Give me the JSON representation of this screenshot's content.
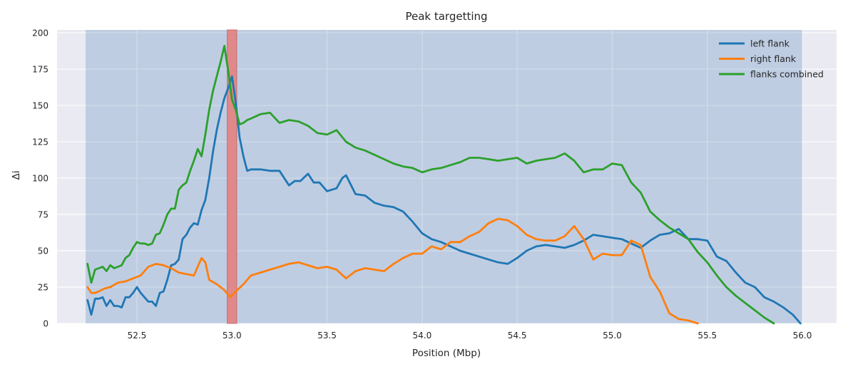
{
  "chart_data": {
    "type": "line",
    "title": "Peak targetting",
    "xlabel": "Position (Mbp)",
    "ylabel": "Δi",
    "xlim": [
      52.08,
      56.18
    ],
    "ylim": [
      0,
      202
    ],
    "xticks": [
      52.5,
      53.0,
      53.5,
      54.0,
      54.5,
      55.0,
      55.5,
      56.0
    ],
    "xtick_labels": [
      "52.5",
      "53.0",
      "53.5",
      "54.0",
      "54.5",
      "55.0",
      "55.5",
      "56.0"
    ],
    "yticks": [
      0,
      25,
      50,
      75,
      100,
      125,
      150,
      175,
      200
    ],
    "ytick_labels": [
      "0",
      "25",
      "50",
      "75",
      "100",
      "125",
      "150",
      "175",
      "200"
    ],
    "grid": true,
    "legend_position": "top-right",
    "background_color": "#eaeaf2",
    "shaded_region": {
      "x": [
        52.23,
        56.0
      ],
      "color": "#4c82b8",
      "opacity": 0.27
    },
    "highlight_region": {
      "x": [
        52.975,
        53.025
      ],
      "color": "#e0898a"
    },
    "series": [
      {
        "name": "left flank",
        "color": "#1f77b4",
        "x": [
          52.24,
          52.26,
          52.28,
          52.3,
          52.32,
          52.34,
          52.36,
          52.38,
          52.4,
          52.42,
          52.44,
          52.46,
          52.48,
          52.5,
          52.52,
          52.54,
          52.56,
          52.58,
          52.6,
          52.62,
          52.64,
          52.66,
          52.68,
          52.7,
          52.72,
          52.74,
          52.76,
          52.78,
          52.8,
          52.82,
          52.84,
          52.86,
          52.88,
          52.9,
          52.92,
          52.94,
          52.96,
          52.98,
          53.0,
          53.02,
          53.04,
          53.06,
          53.08,
          53.1,
          53.15,
          53.2,
          53.25,
          53.3,
          53.33,
          53.36,
          53.4,
          53.43,
          53.46,
          53.5,
          53.55,
          53.58,
          53.6,
          53.65,
          53.7,
          53.75,
          53.8,
          53.85,
          53.9,
          53.95,
          54.0,
          54.05,
          54.1,
          54.15,
          54.2,
          54.25,
          54.3,
          54.35,
          54.4,
          54.45,
          54.5,
          54.55,
          54.6,
          54.65,
          54.7,
          54.75,
          54.8,
          54.85,
          54.9,
          54.95,
          55.0,
          55.05,
          55.1,
          55.15,
          55.2,
          55.25,
          55.3,
          55.35,
          55.4,
          55.45,
          55.5,
          55.55,
          55.6,
          55.65,
          55.7,
          55.75,
          55.8,
          55.85,
          55.9,
          55.95,
          55.99
        ],
        "y": [
          16,
          6,
          17,
          17,
          18,
          12,
          16,
          12,
          12,
          11,
          18,
          18,
          21,
          25,
          21,
          18,
          15,
          15,
          12,
          21,
          22,
          30,
          40,
          41,
          44,
          58,
          61,
          66,
          69,
          68,
          78,
          85,
          100,
          118,
          133,
          145,
          155,
          162,
          170,
          152,
          128,
          115,
          105,
          106,
          106,
          105,
          105,
          95,
          98,
          98,
          103,
          97,
          97,
          91,
          93,
          100,
          102,
          89,
          88,
          83,
          81,
          80,
          77,
          70,
          62,
          58,
          56,
          53,
          50,
          48,
          46,
          44,
          42,
          41,
          45,
          50,
          53,
          54,
          53,
          52,
          54,
          57,
          61,
          60,
          59,
          58,
          55,
          52,
          57,
          61,
          62,
          65,
          58,
          58,
          57,
          46,
          43,
          35,
          28,
          25,
          18,
          15,
          11,
          6,
          0
        ]
      },
      {
        "name": "right flank",
        "color": "#ff7f0e",
        "x": [
          52.24,
          52.26,
          52.28,
          52.3,
          52.33,
          52.36,
          52.4,
          52.44,
          52.48,
          52.52,
          52.56,
          52.6,
          52.64,
          52.68,
          52.72,
          52.76,
          52.8,
          52.84,
          52.86,
          52.88,
          52.92,
          52.96,
          52.99,
          53.02,
          53.06,
          53.1,
          53.15,
          53.2,
          53.25,
          53.3,
          53.35,
          53.4,
          53.45,
          53.5,
          53.55,
          53.6,
          53.65,
          53.7,
          53.75,
          53.8,
          53.85,
          53.9,
          53.95,
          54.0,
          54.05,
          54.1,
          54.15,
          54.2,
          54.25,
          54.3,
          54.35,
          54.4,
          54.45,
          54.5,
          54.55,
          54.6,
          54.65,
          54.7,
          54.75,
          54.8,
          54.85,
          54.9,
          54.95,
          55.0,
          55.05,
          55.1,
          55.15,
          55.2,
          55.25,
          55.3,
          55.35,
          55.4,
          55.45
        ],
        "y": [
          25,
          21,
          21,
          22,
          24,
          25,
          28,
          29,
          31,
          33,
          39,
          41,
          40,
          38,
          35,
          34,
          33,
          45,
          42,
          30,
          27,
          23,
          18,
          22,
          27,
          33,
          35,
          37,
          39,
          41,
          42,
          40,
          38,
          39,
          37,
          31,
          36,
          38,
          37,
          36,
          41,
          45,
          48,
          48,
          53,
          51,
          56,
          56,
          60,
          63,
          69,
          72,
          71,
          67,
          61,
          58,
          57,
          57,
          60,
          67,
          58,
          44,
          48,
          47,
          47,
          57,
          54,
          32,
          22,
          7,
          3,
          2,
          0
        ]
      },
      {
        "name": "flanks combined",
        "color": "#2ca02c",
        "x": [
          52.24,
          52.26,
          52.28,
          52.3,
          52.32,
          52.34,
          52.36,
          52.38,
          52.4,
          52.42,
          52.44,
          52.46,
          52.48,
          52.5,
          52.52,
          52.54,
          52.56,
          52.58,
          52.6,
          52.62,
          52.64,
          52.66,
          52.68,
          52.7,
          52.72,
          52.74,
          52.76,
          52.78,
          52.8,
          52.82,
          52.84,
          52.86,
          52.88,
          52.9,
          52.92,
          52.94,
          52.96,
          52.98,
          53.0,
          53.02,
          53.04,
          53.06,
          53.08,
          53.1,
          53.15,
          53.2,
          53.25,
          53.3,
          53.35,
          53.4,
          53.45,
          53.5,
          53.55,
          53.6,
          53.65,
          53.7,
          53.75,
          53.8,
          53.85,
          53.9,
          53.95,
          54.0,
          54.05,
          54.1,
          54.15,
          54.2,
          54.25,
          54.3,
          54.35,
          54.4,
          54.45,
          54.5,
          54.55,
          54.6,
          54.65,
          54.7,
          54.75,
          54.8,
          54.85,
          54.9,
          54.95,
          55.0,
          55.05,
          55.1,
          55.15,
          55.2,
          55.25,
          55.3,
          55.35,
          55.4,
          55.45,
          55.5,
          55.55,
          55.6,
          55.65,
          55.7,
          55.75,
          55.8,
          55.85
        ],
        "y": [
          41,
          28,
          37,
          38,
          39,
          36,
          40,
          38,
          39,
          40,
          45,
          47,
          52,
          56,
          55,
          55,
          54,
          55,
          61,
          62,
          68,
          75,
          79,
          79,
          92,
          95,
          97,
          105,
          112,
          120,
          115,
          130,
          147,
          160,
          170,
          180,
          191,
          174,
          154,
          147,
          137,
          138,
          140,
          141,
          144,
          145,
          138,
          140,
          139,
          136,
          131,
          130,
          133,
          125,
          121,
          119,
          116,
          113,
          110,
          108,
          107,
          104,
          106,
          107,
          109,
          111,
          114,
          114,
          113,
          112,
          113,
          114,
          110,
          112,
          113,
          114,
          117,
          112,
          104,
          106,
          106,
          110,
          109,
          97,
          90,
          77,
          71,
          66,
          62,
          58,
          49,
          42,
          33,
          25,
          19,
          14,
          9,
          4,
          0
        ]
      }
    ]
  }
}
